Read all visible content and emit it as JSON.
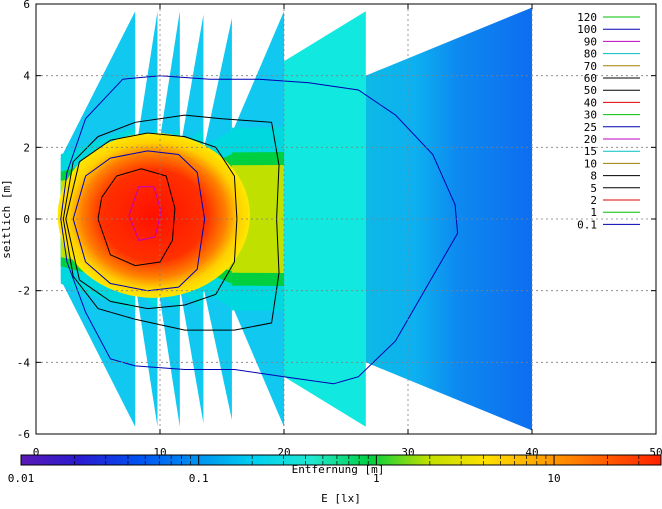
{
  "chart_data": {
    "type": "heatmap",
    "xlabel": "Entfernung [m]",
    "ylabel": "seitlich [m]",
    "xlim": [
      0,
      50
    ],
    "ylim": [
      -6,
      6
    ],
    "x_ticks": [
      "0",
      "10",
      "20",
      "30",
      "40",
      "50"
    ],
    "y_ticks": [
      "-6",
      "-4",
      "-2",
      "0",
      "2",
      "4",
      "6"
    ],
    "grid": true,
    "legend_position": "top-right",
    "contour_levels": [
      "120",
      "100",
      "90",
      "80",
      "70",
      "60",
      "50",
      "40",
      "30",
      "25",
      "20",
      "15",
      "10",
      "8",
      "5",
      "2",
      "1",
      "0.1"
    ],
    "contour_colors": [
      "#00c000",
      "#0000b0",
      "#c000c0",
      "#00c0c0",
      "#a08000",
      "#000000",
      "#000000",
      "#e00000",
      "#00c000",
      "#0000b0",
      "#c000c0",
      "#00c0c0",
      "#a08000",
      "#000000",
      "#000000",
      "#e00000",
      "#00c000",
      "#0000b0"
    ],
    "colorbar": {
      "label": "E [lx]",
      "scale": "log",
      "range": [
        0.01,
        40
      ],
      "tick_labels": [
        "0.01",
        "0.1",
        "1",
        "10"
      ],
      "colors": [
        "#5a1ab4",
        "#2a1ad0",
        "#0050f0",
        "#0090f0",
        "#00d0f0",
        "#20e8d0",
        "#00d040",
        "#c0e000",
        "#ffe000",
        "#ffa000",
        "#ff6000",
        "#ff2000"
      ]
    },
    "beam_sections": [
      {
        "x_start": 2,
        "x_end": 8,
        "y_half_start": 1.7,
        "y_half_end": 5.8
      },
      {
        "x_start": 8,
        "x_end": 9.8,
        "y_half_start": 1.8,
        "y_half_end": 5.8
      },
      {
        "x_start": 9.8,
        "x_end": 11.6,
        "y_half_start": 1.8,
        "y_half_end": 5.8
      },
      {
        "x_start": 11.6,
        "x_end": 13.5,
        "y_half_start": 1.9,
        "y_half_end": 5.7
      },
      {
        "x_start": 13.5,
        "x_end": 15.8,
        "y_half_start": 1.9,
        "y_half_end": 5.6
      },
      {
        "x_start": 15.8,
        "x_end": 20,
        "y_half_start": 2.4,
        "y_half_end": 5.8
      },
      {
        "x_start": 20,
        "x_end": 26.6,
        "y_half_start": 4.4,
        "y_half_end": 5.8
      },
      {
        "x_start": 26.6,
        "x_end": 40,
        "y_half_start": 4.0,
        "y_half_end": 5.9
      }
    ],
    "iso_outline_0.1": [
      [
        2,
        0
      ],
      [
        2.5,
        -1.2
      ],
      [
        4,
        -2.6
      ],
      [
        6,
        -3.9
      ],
      [
        8,
        -4.1
      ],
      [
        12,
        -4.2
      ],
      [
        16,
        -4.2
      ],
      [
        20,
        -4.4
      ],
      [
        24,
        -4.6
      ],
      [
        26,
        -4.4
      ],
      [
        29,
        -3.4
      ],
      [
        32,
        -1.6
      ],
      [
        34,
        -0.4
      ],
      [
        33.8,
        0.4
      ],
      [
        32,
        1.8
      ],
      [
        29,
        2.9
      ],
      [
        26,
        3.6
      ],
      [
        22,
        3.8
      ],
      [
        18,
        3.9
      ],
      [
        14,
        3.9
      ],
      [
        10,
        4.0
      ],
      [
        7,
        3.9
      ],
      [
        4,
        2.8
      ],
      [
        2.5,
        1.3
      ],
      [
        2,
        0
      ]
    ],
    "iso_outline_1": [
      [
        2.2,
        0
      ],
      [
        3,
        -1.6
      ],
      [
        5,
        -2.5
      ],
      [
        8,
        -2.8
      ],
      [
        12,
        -3.1
      ],
      [
        16,
        -3.1
      ],
      [
        19,
        -2.9
      ],
      [
        19.6,
        -1.5
      ],
      [
        19.4,
        0
      ],
      [
        19.6,
        1.5
      ],
      [
        19,
        2.7
      ],
      [
        15,
        2.8
      ],
      [
        12,
        2.9
      ],
      [
        8,
        2.7
      ],
      [
        5,
        2.3
      ],
      [
        3,
        1.6
      ],
      [
        2.2,
        0
      ]
    ],
    "iso_outline_5": [
      [
        2.4,
        0
      ],
      [
        3.5,
        -1.7
      ],
      [
        6,
        -2.3
      ],
      [
        9,
        -2.5
      ],
      [
        12,
        -2.4
      ],
      [
        14.5,
        -2.1
      ],
      [
        16,
        -1.2
      ],
      [
        16.2,
        0
      ],
      [
        16,
        1.2
      ],
      [
        14.5,
        2.0
      ],
      [
        12,
        2.3
      ],
      [
        9,
        2.4
      ],
      [
        6,
        2.2
      ],
      [
        3.5,
        1.6
      ],
      [
        2.4,
        0
      ]
    ],
    "iso_outline_25": [
      [
        3,
        0
      ],
      [
        4,
        -1.2
      ],
      [
        6,
        -1.8
      ],
      [
        9,
        -2.0
      ],
      [
        11.5,
        -1.9
      ],
      [
        13,
        -1.4
      ],
      [
        13.6,
        0
      ],
      [
        13,
        1.3
      ],
      [
        11.5,
        1.8
      ],
      [
        9,
        1.9
      ],
      [
        6,
        1.7
      ],
      [
        4,
        1.2
      ],
      [
        3,
        0
      ]
    ],
    "iso_outline_60": [
      [
        5,
        0
      ],
      [
        6,
        -1.0
      ],
      [
        8,
        -1.3
      ],
      [
        10,
        -1.2
      ],
      [
        11,
        -0.6
      ],
      [
        11.2,
        0.3
      ],
      [
        10.5,
        1.2
      ],
      [
        8.5,
        1.4
      ],
      [
        6.5,
        1.2
      ],
      [
        5.3,
        0.6
      ],
      [
        5,
        0
      ]
    ],
    "iso_outline_100": [
      [
        7.5,
        0.1
      ],
      [
        8.3,
        -0.6
      ],
      [
        9.6,
        -0.5
      ],
      [
        10.1,
        0.2
      ],
      [
        9.5,
        0.9
      ],
      [
        8.3,
        0.9
      ],
      [
        7.5,
        0.1
      ]
    ]
  }
}
